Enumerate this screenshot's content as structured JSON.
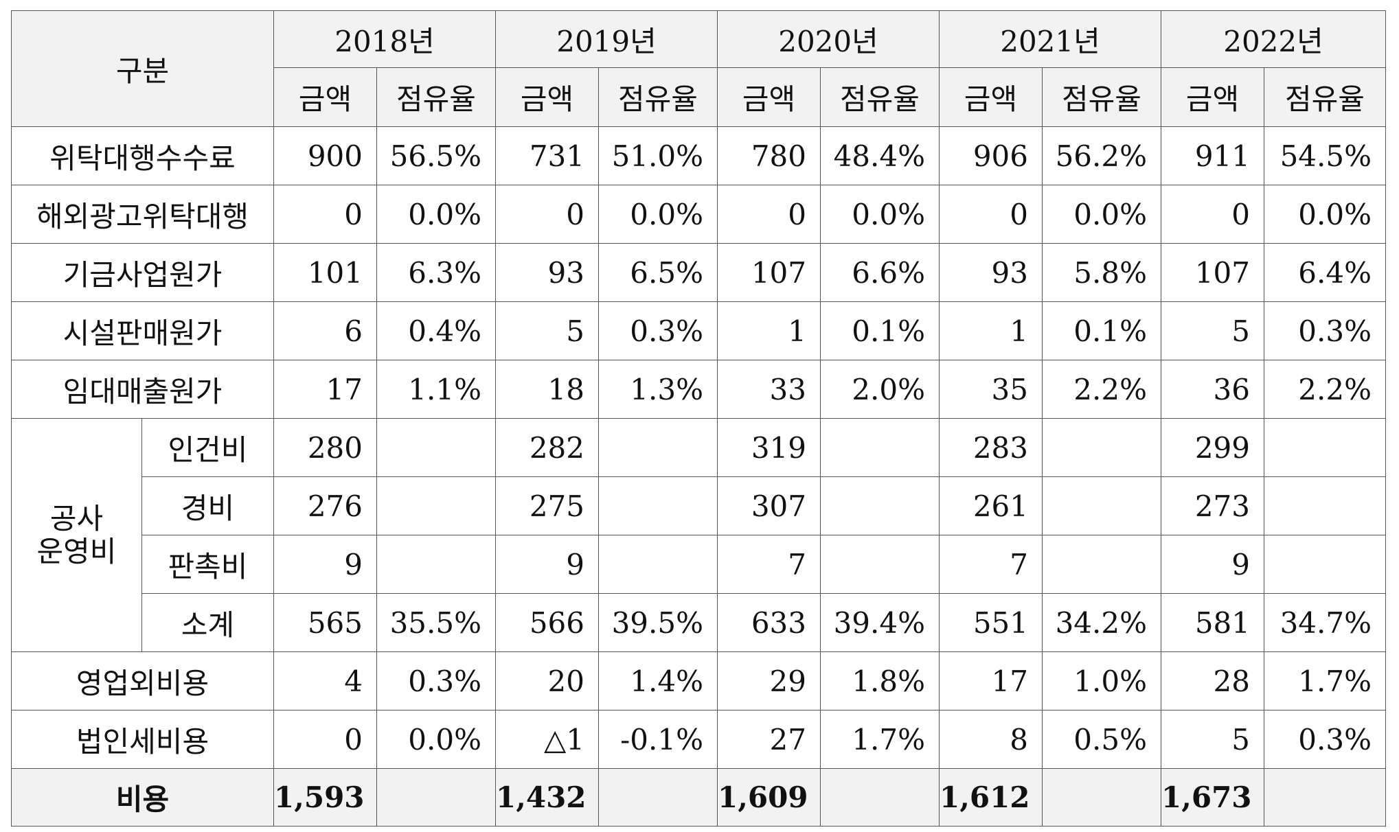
{
  "header": {
    "category": "구분",
    "years": [
      "2018년",
      "2019년",
      "2020년",
      "2021년",
      "2022년"
    ],
    "amount": "금액",
    "share": "점유율"
  },
  "rows": [
    {
      "label": "위탁대행수수료",
      "vals": [
        [
          "900",
          "56.5%"
        ],
        [
          "731",
          "51.0%"
        ],
        [
          "780",
          "48.4%"
        ],
        [
          "906",
          "56.2%"
        ],
        [
          "911",
          "54.5%"
        ]
      ]
    },
    {
      "label": "해외광고위탁대행",
      "vals": [
        [
          "0",
          "0.0%"
        ],
        [
          "0",
          "0.0%"
        ],
        [
          "0",
          "0.0%"
        ],
        [
          "0",
          "0.0%"
        ],
        [
          "0",
          "0.0%"
        ]
      ]
    },
    {
      "label": "기금사업원가",
      "vals": [
        [
          "101",
          "6.3%"
        ],
        [
          "93",
          "6.5%"
        ],
        [
          "107",
          "6.6%"
        ],
        [
          "93",
          "5.8%"
        ],
        [
          "107",
          "6.4%"
        ]
      ]
    },
    {
      "label": "시설판매원가",
      "vals": [
        [
          "6",
          "0.4%"
        ],
        [
          "5",
          "0.3%"
        ],
        [
          "1",
          "0.1%"
        ],
        [
          "1",
          "0.1%"
        ],
        [
          "5",
          "0.3%"
        ]
      ]
    },
    {
      "label": "임대매출원가",
      "vals": [
        [
          "17",
          "1.1%"
        ],
        [
          "18",
          "1.3%"
        ],
        [
          "33",
          "2.0%"
        ],
        [
          "35",
          "2.2%"
        ],
        [
          "36",
          "2.2%"
        ]
      ]
    },
    {
      "group": [
        "공사",
        "운영비"
      ],
      "label": "인건비",
      "vals": [
        [
          "280",
          ""
        ],
        [
          "282",
          ""
        ],
        [
          "319",
          ""
        ],
        [
          "283",
          ""
        ],
        [
          "299",
          ""
        ]
      ]
    },
    {
      "label": "경비",
      "vals": [
        [
          "276",
          ""
        ],
        [
          "275",
          ""
        ],
        [
          "307",
          ""
        ],
        [
          "261",
          ""
        ],
        [
          "273",
          ""
        ]
      ]
    },
    {
      "label": "판촉비",
      "vals": [
        [
          "9",
          ""
        ],
        [
          "9",
          ""
        ],
        [
          "7",
          ""
        ],
        [
          "7",
          ""
        ],
        [
          "9",
          ""
        ]
      ]
    },
    {
      "label": "소계",
      "vals": [
        [
          "565",
          "35.5%"
        ],
        [
          "566",
          "39.5%"
        ],
        [
          "633",
          "39.4%"
        ],
        [
          "551",
          "34.2%"
        ],
        [
          "581",
          "34.7%"
        ]
      ]
    },
    {
      "label": "영업외비용",
      "vals": [
        [
          "4",
          "0.3%"
        ],
        [
          "20",
          "1.4%"
        ],
        [
          "29",
          "1.8%"
        ],
        [
          "17",
          "1.0%"
        ],
        [
          "28",
          "1.7%"
        ]
      ]
    },
    {
      "label": "법인세비용",
      "vals": [
        [
          "0",
          "0.0%"
        ],
        [
          "△1",
          "-0.1%"
        ],
        [
          "27",
          "1.7%"
        ],
        [
          "8",
          "0.5%"
        ],
        [
          "5",
          "0.3%"
        ]
      ]
    },
    {
      "label": "비용",
      "vals": [
        [
          "1,593",
          ""
        ],
        [
          "1,432",
          ""
        ],
        [
          "1,609",
          ""
        ],
        [
          "1,612",
          ""
        ],
        [
          "1,673",
          ""
        ]
      ]
    }
  ]
}
